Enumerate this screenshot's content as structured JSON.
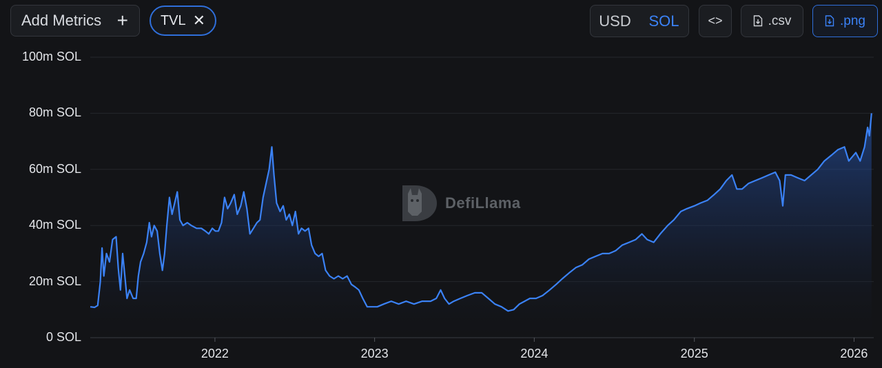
{
  "toolbar": {
    "add_metrics_label": "Add Metrics",
    "add_icon": "plus-icon",
    "metric_chip_label": "TVL",
    "remove_icon": "close-icon",
    "currency_options": [
      "USD",
      "SOL"
    ],
    "currency_selected": "SOL",
    "embed_label": "<>",
    "csv_label": ".csv",
    "png_label": ".png",
    "accent_color": "#3b82f6"
  },
  "watermark": {
    "text": "DefiLlama",
    "icon": "llama-logo-icon"
  },
  "chart_data": {
    "type": "area",
    "title": "",
    "xlabel": "",
    "ylabel": "",
    "unit": "SOL",
    "y_ticks": [
      "0 SOL",
      "20m SOL",
      "40m SOL",
      "60m SOL",
      "80m SOL",
      "100m SOL"
    ],
    "x_ticks": [
      "2022",
      "2023",
      "2024",
      "2025",
      "2026"
    ],
    "ylim": [
      0,
      100000000
    ],
    "xlim": [
      "2021-03-22",
      "2026-02-15"
    ],
    "grid": true,
    "legend": "none",
    "series": [
      {
        "color": "#3b82f6",
        "points": [
          [
            "2021-03-22",
            11000000
          ],
          [
            "2021-04-01",
            10800000
          ],
          [
            "2021-04-08",
            11500000
          ],
          [
            "2021-04-14",
            20000000
          ],
          [
            "2021-04-18",
            32000000
          ],
          [
            "2021-04-22",
            22000000
          ],
          [
            "2021-04-28",
            30000000
          ],
          [
            "2021-05-05",
            27000000
          ],
          [
            "2021-05-12",
            35000000
          ],
          [
            "2021-05-20",
            36000000
          ],
          [
            "2021-05-25",
            25000000
          ],
          [
            "2021-05-30",
            17000000
          ],
          [
            "2021-06-04",
            30000000
          ],
          [
            "2021-06-09",
            22000000
          ],
          [
            "2021-06-14",
            14000000
          ],
          [
            "2021-06-20",
            17000000
          ],
          [
            "2021-06-28",
            14000000
          ],
          [
            "2021-07-05",
            14000000
          ],
          [
            "2021-07-10",
            22000000
          ],
          [
            "2021-07-15",
            27000000
          ],
          [
            "2021-07-22",
            30000000
          ],
          [
            "2021-07-29",
            34000000
          ],
          [
            "2021-08-04",
            41000000
          ],
          [
            "2021-08-09",
            36000000
          ],
          [
            "2021-08-15",
            40000000
          ],
          [
            "2021-08-22",
            38000000
          ],
          [
            "2021-08-28",
            30000000
          ],
          [
            "2021-09-03",
            24000000
          ],
          [
            "2021-09-08",
            30000000
          ],
          [
            "2021-09-13",
            40000000
          ],
          [
            "2021-09-19",
            50000000
          ],
          [
            "2021-09-25",
            44000000
          ],
          [
            "2021-10-01",
            48000000
          ],
          [
            "2021-10-07",
            52000000
          ],
          [
            "2021-10-13",
            42000000
          ],
          [
            "2021-10-20",
            40000000
          ],
          [
            "2021-10-30",
            41000000
          ],
          [
            "2021-11-08",
            40000000
          ],
          [
            "2021-11-20",
            39000000
          ],
          [
            "2021-12-01",
            39000000
          ],
          [
            "2021-12-10",
            38000000
          ],
          [
            "2021-12-18",
            37000000
          ],
          [
            "2021-12-26",
            39000000
          ],
          [
            "2022-01-02",
            38000000
          ],
          [
            "2022-01-09",
            38000000
          ],
          [
            "2022-01-16",
            41000000
          ],
          [
            "2022-01-23",
            50000000
          ],
          [
            "2022-01-30",
            46000000
          ],
          [
            "2022-02-06",
            48000000
          ],
          [
            "2022-02-14",
            51000000
          ],
          [
            "2022-02-21",
            44000000
          ],
          [
            "2022-03-01",
            47000000
          ],
          [
            "2022-03-08",
            52000000
          ],
          [
            "2022-03-15",
            46000000
          ],
          [
            "2022-03-22",
            37000000
          ],
          [
            "2022-03-30",
            39000000
          ],
          [
            "2022-04-07",
            41000000
          ],
          [
            "2022-04-14",
            42000000
          ],
          [
            "2022-04-21",
            50000000
          ],
          [
            "2022-04-28",
            55000000
          ],
          [
            "2022-05-05",
            60000000
          ],
          [
            "2022-05-11",
            68000000
          ],
          [
            "2022-05-16",
            58000000
          ],
          [
            "2022-05-22",
            48000000
          ],
          [
            "2022-05-30",
            45000000
          ],
          [
            "2022-06-06",
            47000000
          ],
          [
            "2022-06-13",
            42000000
          ],
          [
            "2022-06-20",
            44000000
          ],
          [
            "2022-06-27",
            40000000
          ],
          [
            "2022-07-04",
            45000000
          ],
          [
            "2022-07-11",
            37000000
          ],
          [
            "2022-07-18",
            39000000
          ],
          [
            "2022-07-26",
            38000000
          ],
          [
            "2022-08-03",
            39000000
          ],
          [
            "2022-08-10",
            33000000
          ],
          [
            "2022-08-18",
            30000000
          ],
          [
            "2022-08-26",
            29000000
          ],
          [
            "2022-09-03",
            30000000
          ],
          [
            "2022-09-11",
            24000000
          ],
          [
            "2022-09-20",
            22000000
          ],
          [
            "2022-09-30",
            21000000
          ],
          [
            "2022-10-10",
            22000000
          ],
          [
            "2022-10-20",
            21000000
          ],
          [
            "2022-10-30",
            22000000
          ],
          [
            "2022-11-09",
            19000000
          ],
          [
            "2022-11-18",
            18000000
          ],
          [
            "2022-11-26",
            17000000
          ],
          [
            "2022-12-05",
            14000000
          ],
          [
            "2022-12-15",
            11000000
          ],
          [
            "2022-12-26",
            11000000
          ],
          [
            "2023-01-07",
            11000000
          ],
          [
            "2023-01-22",
            12000000
          ],
          [
            "2023-02-08",
            13000000
          ],
          [
            "2023-02-25",
            12000000
          ],
          [
            "2023-03-14",
            13000000
          ],
          [
            "2023-04-01",
            12000000
          ],
          [
            "2023-04-20",
            13000000
          ],
          [
            "2023-05-09",
            13000000
          ],
          [
            "2023-05-22",
            14000000
          ],
          [
            "2023-06-01",
            17000000
          ],
          [
            "2023-06-10",
            14000000
          ],
          [
            "2023-06-20",
            12000000
          ],
          [
            "2023-07-01",
            13000000
          ],
          [
            "2023-07-16",
            14000000
          ],
          [
            "2023-08-01",
            15000000
          ],
          [
            "2023-08-18",
            16000000
          ],
          [
            "2023-09-03",
            16000000
          ],
          [
            "2023-09-18",
            14000000
          ],
          [
            "2023-10-03",
            12000000
          ],
          [
            "2023-10-18",
            11000000
          ],
          [
            "2023-11-02",
            9500000
          ],
          [
            "2023-11-15",
            10000000
          ],
          [
            "2023-11-28",
            12000000
          ],
          [
            "2023-12-10",
            13000000
          ],
          [
            "2023-12-22",
            14000000
          ],
          [
            "2024-01-05",
            14000000
          ],
          [
            "2024-01-20",
            15000000
          ],
          [
            "2024-02-05",
            17000000
          ],
          [
            "2024-02-20",
            19000000
          ],
          [
            "2024-03-05",
            21000000
          ],
          [
            "2024-03-20",
            23000000
          ],
          [
            "2024-04-05",
            25000000
          ],
          [
            "2024-04-20",
            26000000
          ],
          [
            "2024-05-05",
            28000000
          ],
          [
            "2024-05-20",
            29000000
          ],
          [
            "2024-06-05",
            30000000
          ],
          [
            "2024-06-20",
            30000000
          ],
          [
            "2024-07-05",
            31000000
          ],
          [
            "2024-07-20",
            33000000
          ],
          [
            "2024-08-05",
            34000000
          ],
          [
            "2024-08-20",
            35000000
          ],
          [
            "2024-09-03",
            37000000
          ],
          [
            "2024-09-15",
            35000000
          ],
          [
            "2024-09-30",
            34000000
          ],
          [
            "2024-10-15",
            37000000
          ],
          [
            "2024-11-01",
            40000000
          ],
          [
            "2024-11-15",
            42000000
          ],
          [
            "2024-12-01",
            45000000
          ],
          [
            "2024-12-15",
            46000000
          ],
          [
            "2025-01-01",
            47000000
          ],
          [
            "2025-01-15",
            48000000
          ],
          [
            "2025-01-31",
            49000000
          ],
          [
            "2025-02-15",
            51000000
          ],
          [
            "2025-03-01",
            53000000
          ],
          [
            "2025-03-15",
            56000000
          ],
          [
            "2025-03-28",
            58000000
          ],
          [
            "2025-04-08",
            53000000
          ],
          [
            "2025-04-20",
            53000000
          ],
          [
            "2025-05-05",
            55000000
          ],
          [
            "2025-05-20",
            56000000
          ],
          [
            "2025-06-05",
            57000000
          ],
          [
            "2025-06-20",
            58000000
          ],
          [
            "2025-07-05",
            59000000
          ],
          [
            "2025-07-15",
            56000000
          ],
          [
            "2025-07-22",
            47000000
          ],
          [
            "2025-07-28",
            58000000
          ],
          [
            "2025-08-10",
            58000000
          ],
          [
            "2025-08-25",
            57000000
          ],
          [
            "2025-09-10",
            56000000
          ],
          [
            "2025-09-25",
            58000000
          ],
          [
            "2025-10-10",
            60000000
          ],
          [
            "2025-10-25",
            63000000
          ],
          [
            "2025-11-10",
            65000000
          ],
          [
            "2025-11-25",
            67000000
          ],
          [
            "2025-12-10",
            68000000
          ],
          [
            "2025-12-20",
            63000000
          ],
          [
            "2026-01-05",
            66000000
          ],
          [
            "2026-01-15",
            63000000
          ],
          [
            "2026-01-25",
            68000000
          ],
          [
            "2026-02-01",
            75000000
          ],
          [
            "2026-02-05",
            72000000
          ],
          [
            "2026-02-10",
            80000000
          ]
        ]
      }
    ]
  }
}
